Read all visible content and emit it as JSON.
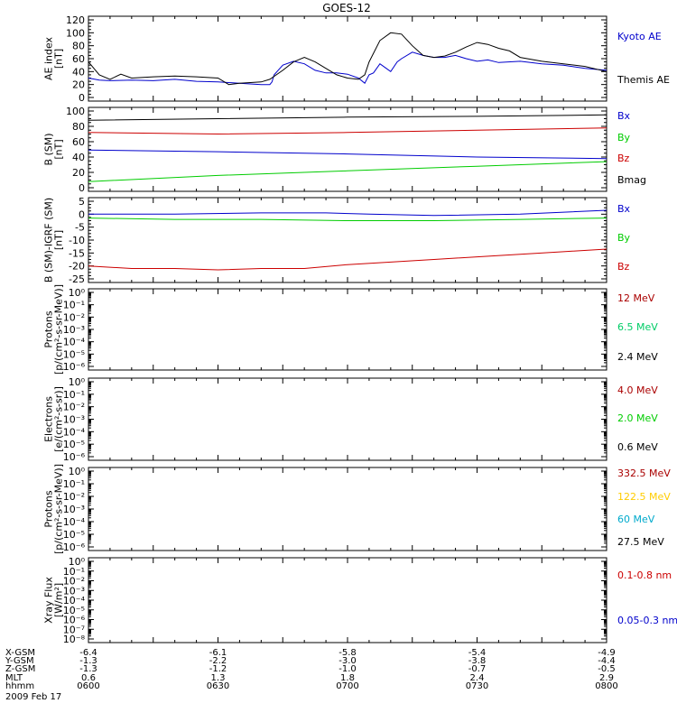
{
  "title": "GOES-12",
  "date_label": "2009 Feb 17",
  "footer": {
    "row_labels": [
      "X-GSM",
      "Y-GSM",
      "Z-GSM",
      "MLT",
      "hhmm"
    ],
    "columns": [
      {
        "values": [
          "-6.4",
          "-1.3",
          "-1.3",
          "0.6",
          "0600"
        ]
      },
      {
        "values": [
          "-6.1",
          "-2.2",
          "-1.2",
          "1.3",
          "0630"
        ]
      },
      {
        "values": [
          "-5.8",
          "-3.0",
          "-1.0",
          "1.8",
          "0700"
        ]
      },
      {
        "values": [
          "-5.4",
          "-3.8",
          "-0.7",
          "2.4",
          "0730"
        ]
      },
      {
        "values": [
          "-4.9",
          "-4.4",
          "-0.5",
          "2.9",
          "0800"
        ]
      }
    ]
  },
  "chart_data": [
    {
      "type": "line",
      "ylabel": "AE index\n[nT]",
      "ylim": [
        0,
        120
      ],
      "yticks": [
        "0",
        "20",
        "40",
        "60",
        "80",
        "100",
        "120"
      ],
      "x_units": "minutes after 0600",
      "series": [
        {
          "name": "Kyoto AE",
          "color": "#0000cc",
          "x": [
            0,
            5,
            10,
            20,
            30,
            40,
            50,
            60,
            70,
            80,
            84,
            85,
            86,
            90,
            95,
            100,
            105,
            110,
            115,
            120,
            125,
            128,
            130,
            132,
            135,
            138,
            140,
            143,
            145,
            150,
            155,
            160,
            165,
            170,
            175,
            180,
            185,
            190,
            200,
            210,
            220,
            230,
            240
          ],
          "y": [
            30,
            27,
            26,
            27,
            26,
            28,
            25,
            24,
            22,
            20,
            20,
            24,
            35,
            50,
            56,
            52,
            42,
            38,
            38,
            36,
            30,
            22,
            35,
            38,
            52,
            45,
            40,
            55,
            60,
            70,
            65,
            62,
            62,
            65,
            60,
            56,
            58,
            54,
            56,
            52,
            50,
            45,
            42
          ]
        },
        {
          "name": "Themis AE",
          "color": "#000000",
          "x": [
            0,
            5,
            10,
            15,
            20,
            30,
            40,
            50,
            60,
            65,
            70,
            80,
            84,
            90,
            95,
            100,
            105,
            110,
            115,
            120,
            125,
            128,
            130,
            135,
            140,
            145,
            150,
            155,
            160,
            165,
            170,
            175,
            180,
            185,
            190,
            195,
            200,
            210,
            220,
            230,
            240
          ],
          "y": [
            55,
            35,
            28,
            36,
            30,
            32,
            33,
            32,
            30,
            20,
            22,
            24,
            28,
            42,
            55,
            62,
            55,
            45,
            35,
            30,
            28,
            35,
            55,
            88,
            100,
            98,
            80,
            65,
            62,
            64,
            70,
            78,
            85,
            82,
            76,
            72,
            62,
            56,
            52,
            48,
            40
          ]
        }
      ]
    },
    {
      "type": "line",
      "ylabel": "B (SM)\n[nT]",
      "ylim": [
        0,
        100
      ],
      "yticks": [
        "0",
        "20",
        "40",
        "60",
        "80",
        "100"
      ],
      "series": [
        {
          "name": "Bx",
          "color": "#0000cc",
          "x": [
            0,
            60,
            120,
            180,
            240
          ],
          "y": [
            49,
            47,
            44,
            40,
            38
          ]
        },
        {
          "name": "By",
          "color": "#00cc00",
          "x": [
            0,
            60,
            120,
            180,
            240
          ],
          "y": [
            8,
            16,
            22,
            28,
            34
          ]
        },
        {
          "name": "Bz",
          "color": "#cc0000",
          "x": [
            0,
            60,
            120,
            180,
            240
          ],
          "y": [
            72,
            70,
            72,
            75,
            78
          ]
        },
        {
          "name": "Bmag",
          "color": "#000000",
          "x": [
            0,
            60,
            120,
            180,
            240
          ],
          "y": [
            88,
            90,
            92,
            93,
            95
          ]
        }
      ]
    },
    {
      "type": "line",
      "ylabel": "B (SM)-IGRF (SM)\n[nT]",
      "ylim": [
        -25,
        5
      ],
      "yticks": [
        "-25",
        "-20",
        "-15",
        "-10",
        "-5",
        "0",
        "5"
      ],
      "series": [
        {
          "name": "Bx",
          "color": "#0000cc",
          "x": [
            0,
            40,
            80,
            110,
            130,
            160,
            200,
            240
          ],
          "y": [
            0,
            0,
            0.5,
            0.5,
            0,
            -0.5,
            0,
            1.5
          ]
        },
        {
          "name": "By",
          "color": "#00cc00",
          "x": [
            0,
            40,
            80,
            120,
            160,
            200,
            240
          ],
          "y": [
            -1.5,
            -2,
            -2,
            -2.5,
            -2.5,
            -2,
            -1.5
          ]
        },
        {
          "name": "Bz",
          "color": "#cc0000",
          "x": [
            0,
            20,
            40,
            60,
            80,
            100,
            120,
            140,
            160,
            180,
            200,
            220,
            240
          ],
          "y": [
            -20,
            -21,
            -21,
            -21.5,
            -21,
            -21,
            -19.5,
            -18.5,
            -17.5,
            -16.5,
            -15.5,
            -14.5,
            -13.5
          ]
        }
      ]
    },
    {
      "type": "line",
      "ylabel": "Protons\n[p/(cm²-s-sr-MeV)]",
      "yscale": "log",
      "yticks": [
        "10⁻⁶",
        "10⁻⁵",
        "10⁻⁴",
        "10⁻³",
        "10⁻²",
        "10⁻¹",
        "10⁰"
      ],
      "series": [
        {
          "name": "12 MeV",
          "color": "#aa0000",
          "values": []
        },
        {
          "name": "6.5 MeV",
          "color": "#00cc66",
          "values": []
        },
        {
          "name": "2.4 MeV",
          "color": "#000000",
          "values": []
        }
      ]
    },
    {
      "type": "line",
      "ylabel": "Electrons\n[e/(cm²-s-sr)]",
      "yscale": "log",
      "yticks": [
        "10⁻⁶",
        "10⁻⁵",
        "10⁻⁴",
        "10⁻³",
        "10⁻²",
        "10⁻¹",
        "10⁰"
      ],
      "series": [
        {
          "name": "4.0 MeV",
          "color": "#aa0000",
          "values": []
        },
        {
          "name": "2.0 MeV",
          "color": "#00cc00",
          "values": []
        },
        {
          "name": "0.6 MeV",
          "color": "#000000",
          "values": []
        }
      ]
    },
    {
      "type": "line",
      "ylabel": "Protons\n[p/(cm²-s-sr-MeV)]",
      "yscale": "log",
      "yticks": [
        "10⁻⁶",
        "10⁻⁵",
        "10⁻⁴",
        "10⁻³",
        "10⁻²",
        "10⁻¹",
        "10⁰"
      ],
      "series": [
        {
          "name": "332.5 MeV",
          "color": "#aa0000",
          "values": []
        },
        {
          "name": "122.5 MeV",
          "color": "#ffcc00",
          "values": []
        },
        {
          "name": "60 MeV",
          "color": "#00aacc",
          "values": []
        },
        {
          "name": "27.5 MeV",
          "color": "#000000",
          "values": []
        }
      ]
    },
    {
      "type": "line",
      "ylabel": "Xray Flux\n[W/m²]",
      "yscale": "log",
      "yticks": [
        "10⁻⁸",
        "10⁻⁷",
        "10⁻⁶",
        "10⁻⁵",
        "10⁻⁴",
        "10⁻³",
        "10⁻²",
        "10⁻¹",
        "10⁰"
      ],
      "series": [
        {
          "name": "0.1-0.8 nm",
          "color": "#cc0000",
          "values": []
        },
        {
          "name": "0.05-0.3 nm",
          "color": "#0000cc",
          "values": []
        }
      ]
    }
  ]
}
